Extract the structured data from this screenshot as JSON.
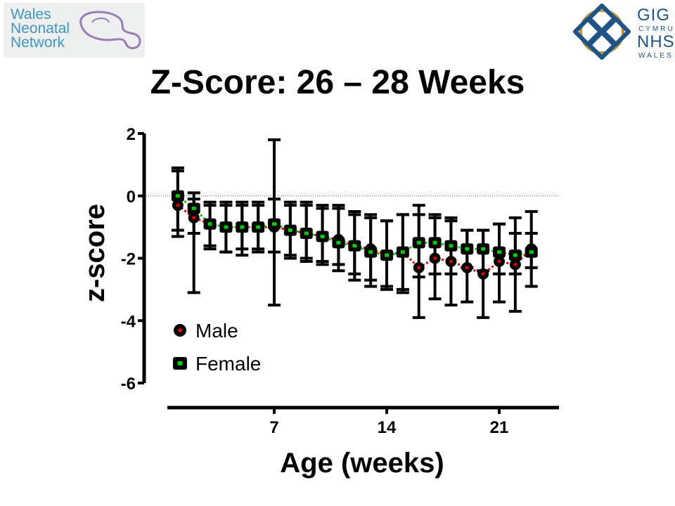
{
  "logos": {
    "left": {
      "lines": [
        "Wales",
        "Neonatal",
        "Network"
      ]
    },
    "right": {
      "big_lines": [
        "GIG",
        "NHS"
      ],
      "small_lines": [
        "CYMRU",
        "WALES"
      ]
    }
  },
  "title": "Z-Score: 26 – 28 Weeks",
  "colors": {
    "male": "#e00000",
    "female": "#00cc00",
    "marker": "#000000"
  },
  "chart_data": {
    "type": "scatter",
    "xlabel": "Age (weeks)",
    "ylabel": "z-score",
    "xlim": [
      0,
      24
    ],
    "ylim": [
      -6,
      2
    ],
    "x_ticks": [
      7,
      14,
      21
    ],
    "y_ticks": [
      2,
      0,
      -2,
      -4,
      -6
    ],
    "reference_line": 0,
    "legend_position": "lower-left",
    "series": [
      {
        "name": "Male",
        "x": [
          1,
          2,
          3,
          4,
          5,
          6,
          7,
          8,
          9,
          10,
          11,
          12,
          13,
          14,
          15,
          16,
          17,
          18,
          19,
          20,
          21,
          22,
          23
        ],
        "y": [
          -0.3,
          -0.7,
          -0.9,
          -1.0,
          -1.0,
          -1.0,
          -1.0,
          -1.1,
          -1.2,
          -1.3,
          -1.4,
          -1.6,
          -1.7,
          -1.9,
          -1.8,
          -2.3,
          -2.0,
          -2.1,
          -2.3,
          -2.5,
          -2.1,
          -2.2,
          -1.7
        ],
        "err_low": [
          -1.3,
          -3.1,
          -1.6,
          -1.8,
          -1.9,
          -1.7,
          -3.5,
          -2.0,
          -2.1,
          -2.2,
          -2.4,
          -2.7,
          -2.9,
          -3.0,
          -3.1,
          -3.9,
          -3.3,
          -3.5,
          -3.4,
          -3.9,
          -3.4,
          -3.7,
          -2.9
        ],
        "err_high": [
          0.9,
          -0.1,
          -0.3,
          -0.2,
          -0.2,
          -0.2,
          1.8,
          -0.2,
          -0.2,
          -0.3,
          -0.3,
          -0.5,
          -0.6,
          -0.8,
          -0.6,
          -0.6,
          -0.7,
          -0.8,
          -1.1,
          -1.1,
          -0.9,
          -0.7,
          -0.5
        ]
      },
      {
        "name": "Female",
        "x": [
          1,
          2,
          3,
          4,
          5,
          6,
          7,
          8,
          9,
          10,
          11,
          12,
          13,
          14,
          15,
          16,
          17,
          18,
          19,
          20,
          21,
          22,
          23
        ],
        "y": [
          0.0,
          -0.4,
          -0.9,
          -1.0,
          -1.0,
          -1.0,
          -0.9,
          -1.1,
          -1.2,
          -1.3,
          -1.5,
          -1.6,
          -1.8,
          -1.9,
          -1.8,
          -1.5,
          -1.5,
          -1.6,
          -1.7,
          -1.7,
          -1.8,
          -1.9,
          -1.8
        ],
        "err_low": [
          -1.1,
          -1.2,
          -1.7,
          -1.8,
          -1.7,
          -1.8,
          -1.8,
          -1.9,
          -2.0,
          -2.1,
          -2.2,
          -2.5,
          -2.7,
          -2.9,
          -3.0,
          -2.6,
          -2.5,
          -2.5,
          -2.3,
          -2.4,
          -2.5,
          -2.5,
          -2.3
        ],
        "err_high": [
          0.8,
          0.1,
          -0.2,
          -0.3,
          -0.3,
          -0.3,
          -0.1,
          -0.3,
          -0.3,
          -0.4,
          -0.4,
          -0.6,
          -0.7,
          -0.8,
          -0.6,
          -0.3,
          -0.6,
          -0.7,
          -1.1,
          -1.1,
          -0.9,
          -1.2,
          -1.2
        ]
      }
    ]
  }
}
